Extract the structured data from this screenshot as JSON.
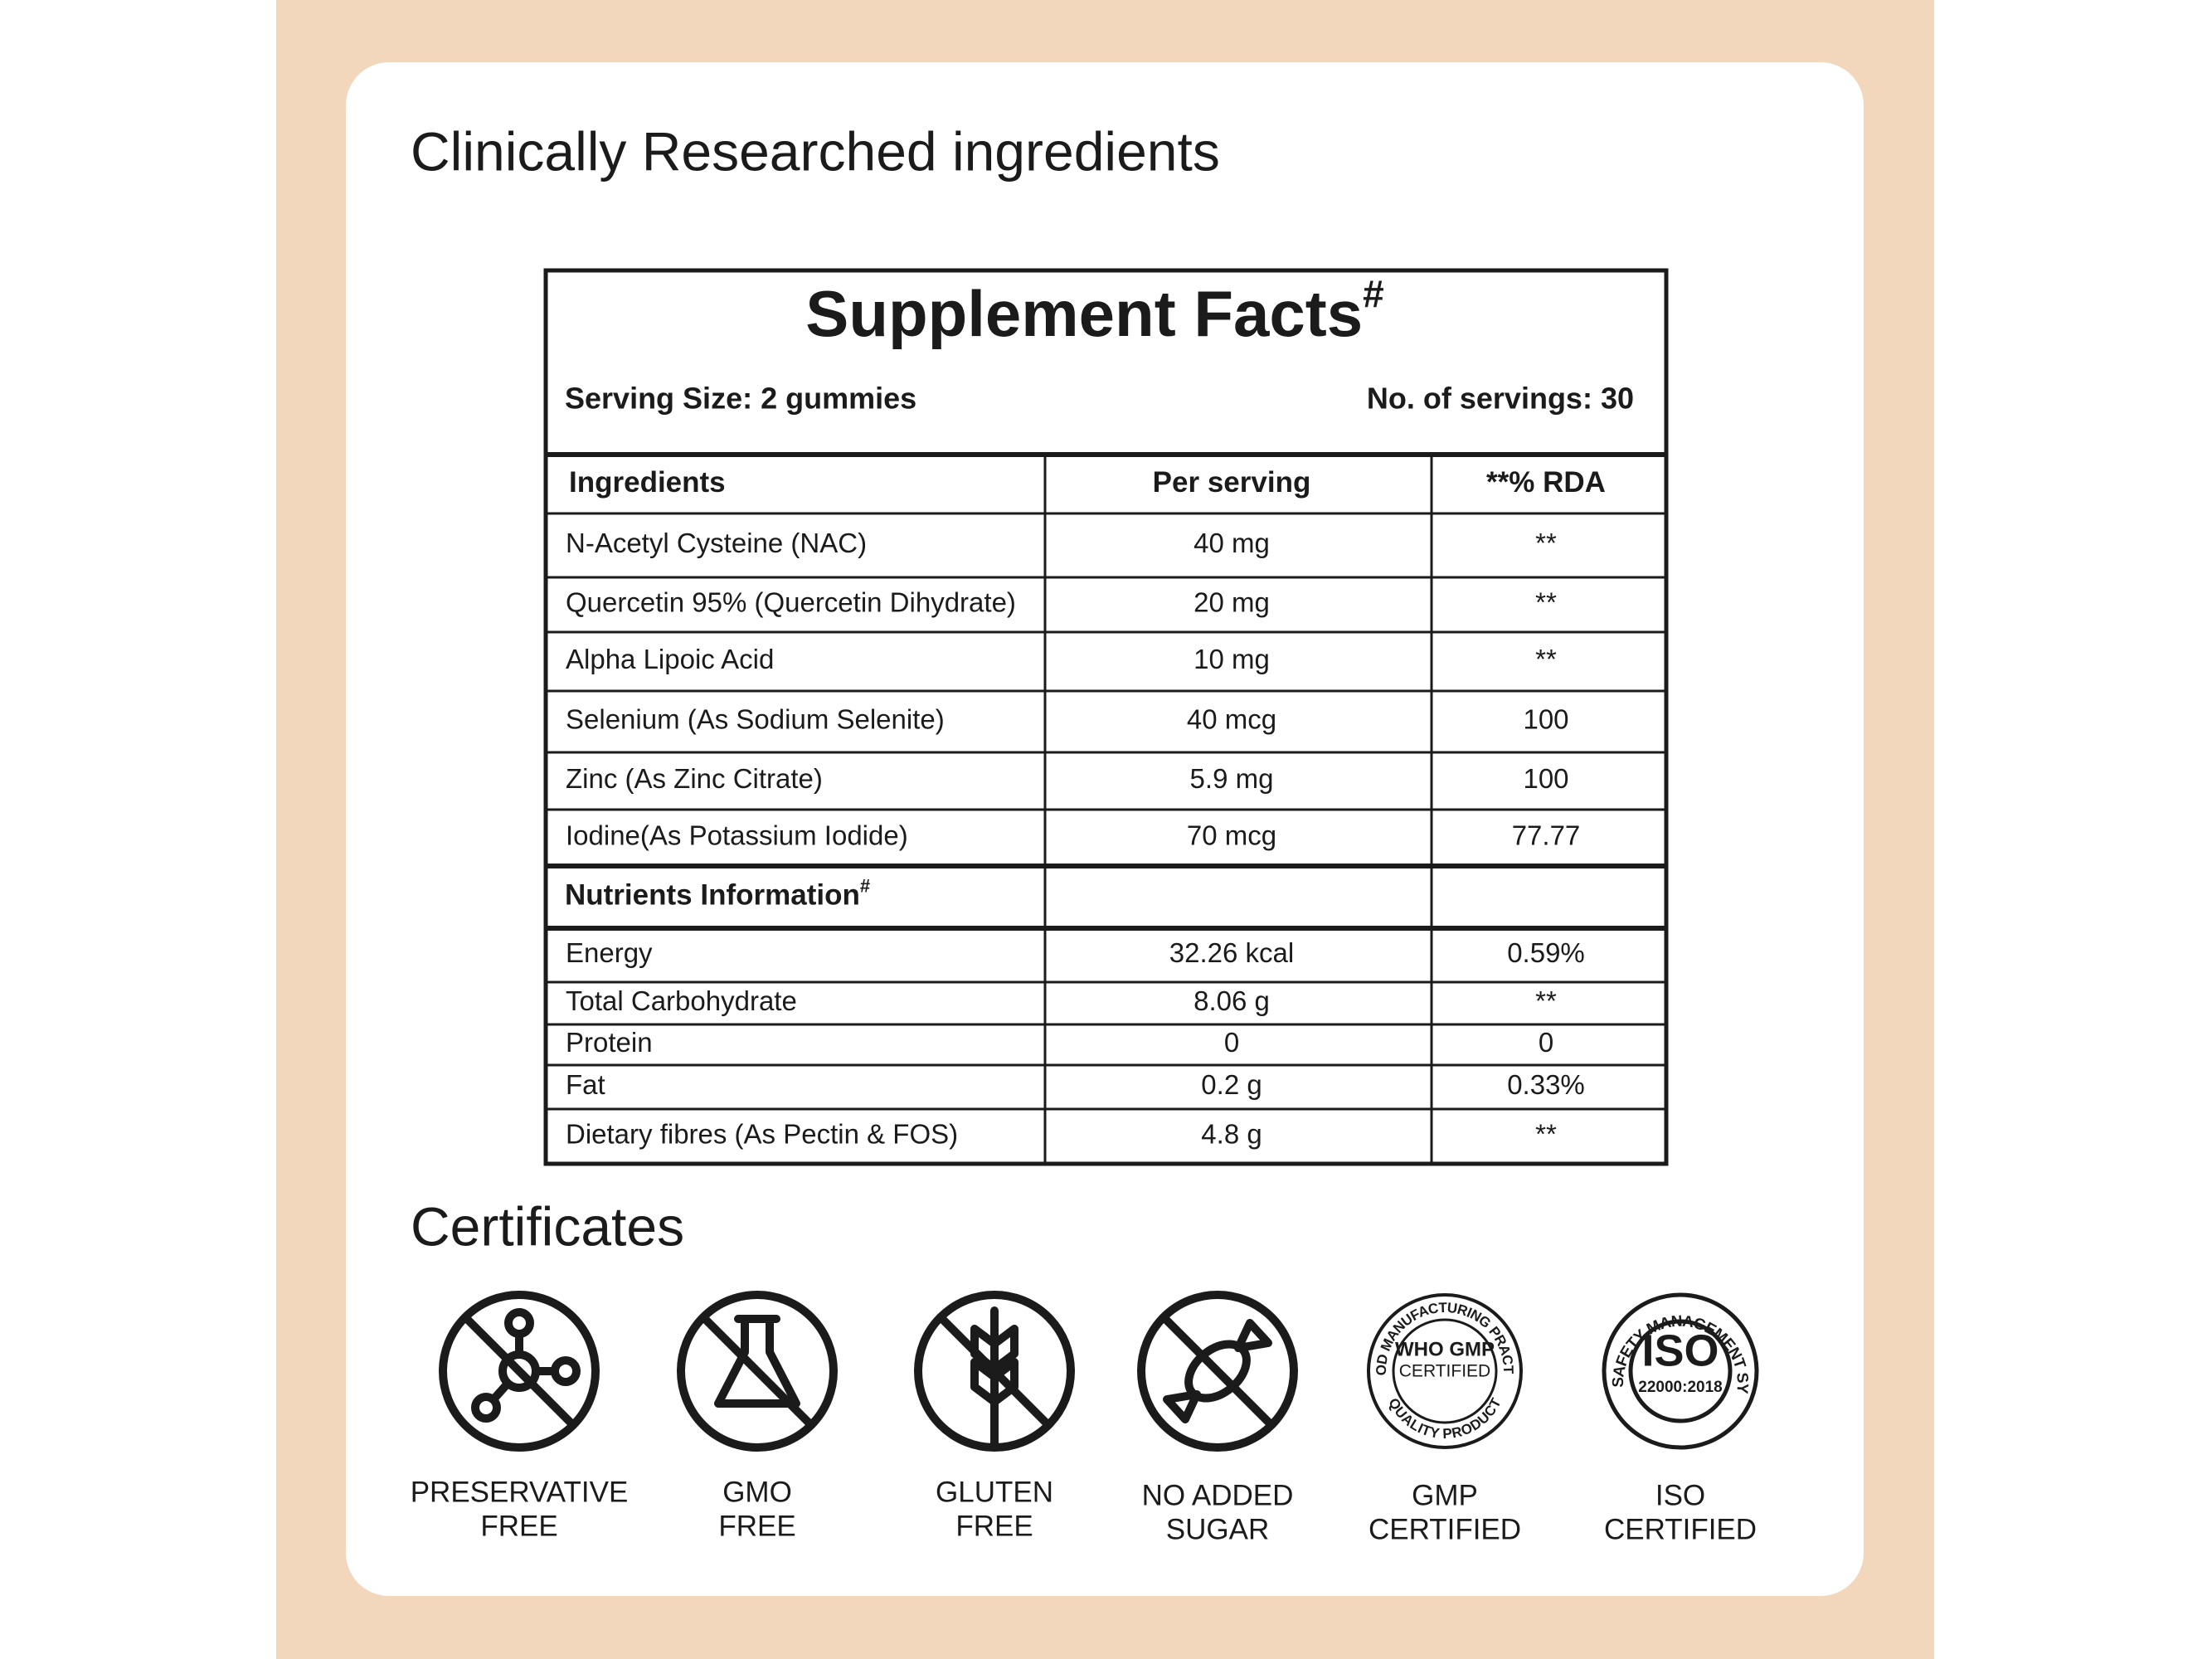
{
  "header": {
    "title": "Clinically Researched ingredients"
  },
  "facts": {
    "title": "Supplement Facts",
    "title_mark": "#",
    "serving_size": "Serving Size: 2 gummies",
    "servings": "No. of servings: 30",
    "columns": [
      "Ingredients",
      "Per serving",
      "**% RDA"
    ],
    "rows": [
      [
        "N-Acetyl Cysteine (NAC)",
        "40 mg",
        "**"
      ],
      [
        "Quercetin 95% (Quercetin Dihydrate)",
        "20 mg",
        "**"
      ],
      [
        "Alpha Lipoic Acid",
        "10 mg",
        "**"
      ],
      [
        "Selenium (As Sodium Selenite)",
        "40 mcg",
        "100"
      ],
      [
        "Zinc (As Zinc Citrate)",
        "5.9 mg",
        "100"
      ],
      [
        "Iodine(As Potassium Iodide)",
        "70 mcg",
        "77.77"
      ]
    ],
    "nutrients_title": "Nutrients Information",
    "nutrients_mark": "#",
    "nutrients": [
      [
        "Energy",
        "32.26 kcal",
        "0.59%"
      ],
      [
        "Total Carbohydrate",
        "8.06 g",
        "**"
      ],
      [
        "Protein",
        "0",
        "0"
      ],
      [
        "Fat",
        "0.2 g",
        "0.33%"
      ],
      [
        "Dietary fibres (As Pectin & FOS)",
        "4.8 g",
        "**"
      ]
    ]
  },
  "certificates": {
    "title": "Certificates",
    "items": [
      [
        "PRESERVATIVE",
        "FREE"
      ],
      [
        "GMO",
        "FREE"
      ],
      [
        "GLUTEN",
        "FREE"
      ],
      [
        "NO ADDED",
        "SUGAR"
      ],
      [
        "GMP",
        "CERTIFIED"
      ],
      [
        "ISO",
        "CERTIFIED"
      ]
    ],
    "gmp_badge": {
      "top": "GOOD MANUFACTURING PRACTICE",
      "bottom": "QUALITY PRODUCT",
      "line1": "WHO GMP",
      "line2": "CERTIFIED"
    },
    "iso_badge": {
      "top": "FOOD SAFETY MANAGEMENT SYSTEM",
      "line1": "ISO",
      "line2": "22000:2018"
    }
  }
}
